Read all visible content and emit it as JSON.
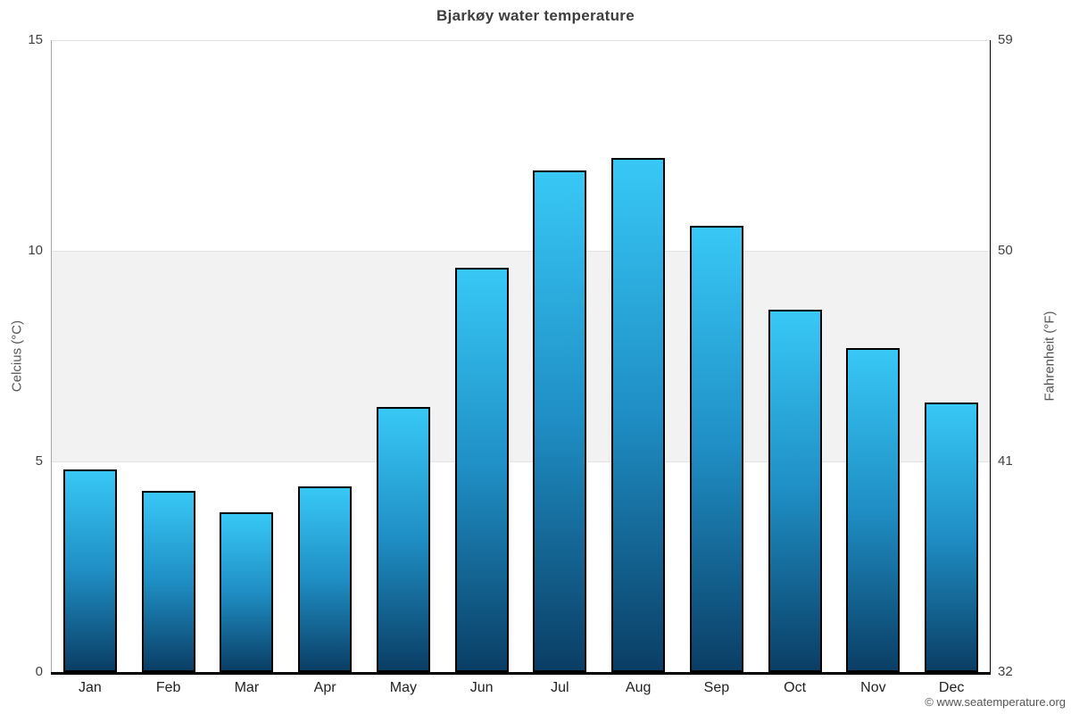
{
  "chart_data": {
    "type": "bar",
    "title": "Bjarkøy water temperature",
    "categories": [
      "Jan",
      "Feb",
      "Mar",
      "Apr",
      "May",
      "Jun",
      "Jul",
      "Aug",
      "Sep",
      "Oct",
      "Nov",
      "Dec"
    ],
    "values": [
      4.8,
      4.3,
      3.8,
      4.4,
      6.3,
      9.6,
      11.9,
      12.2,
      10.6,
      8.6,
      7.7,
      6.4
    ],
    "ylabel_left": "Celcius (°C)",
    "ylabel_right": "Fahrenheit (°F)",
    "yticks_left": [
      0,
      5,
      10,
      15
    ],
    "yticks_right": [
      32,
      41,
      50,
      59
    ],
    "ylim": [
      0,
      15
    ],
    "plot_band": {
      "from": 5,
      "to": 10
    },
    "grid": "horizontal-at-ticks",
    "legend": "none",
    "copyright": "© www.seatemperature.org"
  },
  "colors": {
    "bar_gradient_top": "#38c8f6",
    "bar_gradient_mid": "#1f8ec4",
    "bar_gradient_bottom": "#0a3e65",
    "bar_border": "#000000",
    "plot_band_fill": "#f2f2f2",
    "gridline": "#e2e2e2",
    "left_axis_line": "#a6a6a6",
    "right_axis_line": "#000000",
    "bottom_axis_line": "#000000",
    "title_text": "#3e3e3e",
    "tick_text": "#404040",
    "month_text": "#222222",
    "axis_title_text": "#555555",
    "copyright_text": "#555555",
    "background": "#ffffff"
  }
}
